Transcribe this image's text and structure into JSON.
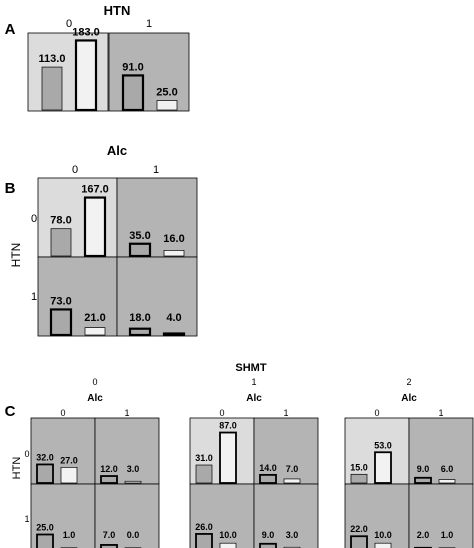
{
  "colors": {
    "panel_light": "#dcdcdc",
    "panel_dark": "#b4b4b4",
    "bar_grey": "#a9a9a9",
    "bar_white": "#f2f2f2",
    "bar_black": "#111111",
    "frame": "#000000"
  },
  "chart_data": [
    {
      "panel": "A",
      "type": "bar",
      "title": "HTN",
      "column_factor": "HTN",
      "column_levels": [
        "0",
        "1"
      ],
      "cells": [
        {
          "col": "0",
          "shade": "light",
          "bars": [
            {
              "value": 113.0,
              "label": "113.0",
              "fill": "grey",
              "border": "thin"
            },
            {
              "value": 183.0,
              "label": "183.0",
              "fill": "white",
              "border": "thick"
            }
          ]
        },
        {
          "col": "1",
          "shade": "dark",
          "bars": [
            {
              "value": 91.0,
              "label": "91.0",
              "fill": "grey",
              "border": "thick"
            },
            {
              "value": 25.0,
              "label": "25.0",
              "fill": "white",
              "border": "thin"
            }
          ]
        }
      ]
    },
    {
      "panel": "B",
      "type": "bar",
      "title": "Alc",
      "ylabel": "HTN",
      "column_levels": [
        "0",
        "1"
      ],
      "row_levels": [
        "0",
        "1"
      ],
      "cells": [
        {
          "row": "0",
          "col": "0",
          "shade": "light",
          "bars": [
            {
              "value": 78.0,
              "label": "78.0",
              "fill": "grey",
              "border": "thin"
            },
            {
              "value": 167.0,
              "label": "167.0",
              "fill": "white",
              "border": "thick"
            }
          ]
        },
        {
          "row": "0",
          "col": "1",
          "shade": "dark",
          "bars": [
            {
              "value": 35.0,
              "label": "35.0",
              "fill": "grey",
              "border": "thick"
            },
            {
              "value": 16.0,
              "label": "16.0",
              "fill": "white",
              "border": "thin"
            }
          ]
        },
        {
          "row": "1",
          "col": "0",
          "shade": "dark",
          "bars": [
            {
              "value": 73.0,
              "label": "73.0",
              "fill": "grey",
              "border": "thick"
            },
            {
              "value": 21.0,
              "label": "21.0",
              "fill": "white",
              "border": "thin"
            }
          ]
        },
        {
          "row": "1",
          "col": "1",
          "shade": "dark",
          "bars": [
            {
              "value": 18.0,
              "label": "18.0",
              "fill": "grey",
              "border": "thick"
            },
            {
              "value": 4.0,
              "label": "4.0",
              "fill": "white",
              "border": "thick"
            }
          ]
        }
      ]
    },
    {
      "panel": "C",
      "type": "bar",
      "title": "SHMT",
      "ylabel": "HTN",
      "subplots": [
        {
          "level": "0",
          "title": "Alc",
          "column_levels": [
            "0",
            "1"
          ],
          "row_levels": [
            "0",
            "1"
          ],
          "cells": [
            {
              "row": "0",
              "col": "0",
              "shade": "dark",
              "bars": [
                {
                  "value": 32.0,
                  "label": "32.0",
                  "fill": "grey",
                  "border": "thick"
                },
                {
                  "value": 27.0,
                  "label": "27.0",
                  "fill": "white",
                  "border": "thin"
                }
              ]
            },
            {
              "row": "0",
              "col": "1",
              "shade": "dark",
              "bars": [
                {
                  "value": 12.0,
                  "label": "12.0",
                  "fill": "grey",
                  "border": "thick"
                },
                {
                  "value": 3.0,
                  "label": "3.0",
                  "fill": "white",
                  "border": "thin"
                }
              ]
            },
            {
              "row": "1",
              "col": "0",
              "shade": "dark",
              "bars": [
                {
                  "value": 25.0,
                  "label": "25.0",
                  "fill": "grey",
                  "border": "thick"
                },
                {
                  "value": 1.0,
                  "label": "1.0",
                  "fill": "white",
                  "border": "thin"
                }
              ]
            },
            {
              "row": "1",
              "col": "1",
              "shade": "dark",
              "bars": [
                {
                  "value": 7.0,
                  "label": "7.0",
                  "fill": "grey",
                  "border": "thick"
                },
                {
                  "value": 0.0,
                  "label": "0.0",
                  "fill": "white",
                  "border": "thin"
                }
              ]
            }
          ]
        },
        {
          "level": "1",
          "title": "Alc",
          "column_levels": [
            "0",
            "1"
          ],
          "row_levels": [
            "0",
            "1"
          ],
          "cells": [
            {
              "row": "0",
              "col": "0",
              "shade": "light",
              "bars": [
                {
                  "value": 31.0,
                  "label": "31.0",
                  "fill": "grey",
                  "border": "thin"
                },
                {
                  "value": 87.0,
                  "label": "87.0",
                  "fill": "white",
                  "border": "thick"
                }
              ]
            },
            {
              "row": "0",
              "col": "1",
              "shade": "dark",
              "bars": [
                {
                  "value": 14.0,
                  "label": "14.0",
                  "fill": "grey",
                  "border": "thick"
                },
                {
                  "value": 7.0,
                  "label": "7.0",
                  "fill": "white",
                  "border": "thin"
                }
              ]
            },
            {
              "row": "1",
              "col": "0",
              "shade": "dark",
              "bars": [
                {
                  "value": 26.0,
                  "label": "26.0",
                  "fill": "grey",
                  "border": "thick"
                },
                {
                  "value": 10.0,
                  "label": "10.0",
                  "fill": "white",
                  "border": "thin"
                }
              ]
            },
            {
              "row": "1",
              "col": "1",
              "shade": "dark",
              "bars": [
                {
                  "value": 9.0,
                  "label": "9.0",
                  "fill": "grey",
                  "border": "thick"
                },
                {
                  "value": 3.0,
                  "label": "3.0",
                  "fill": "white",
                  "border": "thin"
                }
              ]
            }
          ]
        },
        {
          "level": "2",
          "title": "Alc",
          "column_levels": [
            "0",
            "1"
          ],
          "row_levels": [
            "0",
            "1"
          ],
          "cells": [
            {
              "row": "0",
              "col": "0",
              "shade": "light",
              "bars": [
                {
                  "value": 15.0,
                  "label": "15.0",
                  "fill": "grey",
                  "border": "thin"
                },
                {
                  "value": 53.0,
                  "label": "53.0",
                  "fill": "white",
                  "border": "thick"
                }
              ]
            },
            {
              "row": "0",
              "col": "1",
              "shade": "dark",
              "bars": [
                {
                  "value": 9.0,
                  "label": "9.0",
                  "fill": "grey",
                  "border": "thick"
                },
                {
                  "value": 6.0,
                  "label": "6.0",
                  "fill": "white",
                  "border": "thin"
                }
              ]
            },
            {
              "row": "1",
              "col": "0",
              "shade": "dark",
              "bars": [
                {
                  "value": 22.0,
                  "label": "22.0",
                  "fill": "grey",
                  "border": "thick"
                },
                {
                  "value": 10.0,
                  "label": "10.0",
                  "fill": "white",
                  "border": "thin"
                }
              ]
            },
            {
              "row": "1",
              "col": "1",
              "shade": "dark",
              "bars": [
                {
                  "value": 2.0,
                  "label": "2.0",
                  "fill": "black",
                  "border": "thick"
                },
                {
                  "value": 1.0,
                  "label": "1.0",
                  "fill": "white",
                  "border": "thin"
                }
              ]
            }
          ]
        }
      ]
    }
  ]
}
